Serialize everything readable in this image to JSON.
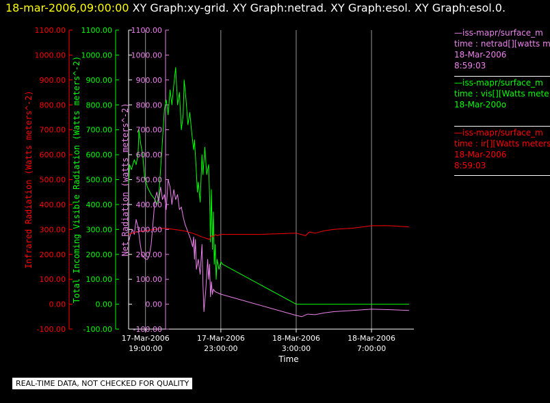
{
  "header": {
    "timestamp": "18-mar-2006,09:00:00",
    "titles": "XY Graph:xy-grid.  XY Graph:netrad.  XY Graph:esol.  XY Graph:esol.0."
  },
  "colors": {
    "ir": "#ff0000",
    "vis": "#00ff00",
    "net": "#ee82ee",
    "grid": "#ffffff",
    "timestamp": "#ffff00"
  },
  "legend": [
    {
      "source": "—iss-mapr/surface_m",
      "var": "time : netrad[][watts m",
      "date": "18-Mar-2006",
      "time": "8:59:03",
      "color": "#ee82ee"
    },
    {
      "source": "—iss-mapr/surface_m",
      "var": "time : vis[][Watts mete",
      "date": "18-Mar-200o",
      "time": "",
      "color": "#00ff00"
    },
    {
      "source": "—iss-mapr/surface_m",
      "var": "time : ir[][Watts meters",
      "date": "18-Mar-2006",
      "time": "8:59:03",
      "color": "#ff0000"
    }
  ],
  "quality_note": "REAL-TIME DATA, NOT CHECKED FOR QUALITY",
  "chart_data": {
    "type": "line",
    "xlabel": "Time",
    "x_ticks": [
      {
        "line1": "17-Mar-2006",
        "line2": "19:00:00",
        "hours": 0
      },
      {
        "line1": "17-Mar-2006",
        "line2": "23:00:00",
        "hours": 4
      },
      {
        "line1": "18-Mar-2006",
        "line2": "3:00:00",
        "hours": 8
      },
      {
        "line1": "18-Mar-2006",
        "line2": "7:00:00",
        "hours": 12
      }
    ],
    "xlim_hours": [
      -0.9,
      14.25
    ],
    "ylim": [
      -100,
      1100
    ],
    "y_ticks": [
      -100,
      0,
      100,
      200,
      300,
      400,
      500,
      600,
      700,
      800,
      900,
      1000,
      1100
    ],
    "y_tick_labels": [
      "-100.00",
      "0.00",
      "100.00",
      "200.00",
      "300.00",
      "400.00",
      "500.00",
      "600.00",
      "700.00",
      "800.00",
      "900.00",
      "1000.00",
      "1100.00"
    ],
    "axes": [
      {
        "label": "Infrared Radiation (Watts meters^-2)",
        "color": "#ff0000"
      },
      {
        "label": "Total Incoming Visible Radiation (Watts meters^-2)",
        "color": "#00ff00"
      },
      {
        "label": "Net Radiation (watts meters^-2)",
        "color": "#ee82ee"
      }
    ],
    "grid": true,
    "series": [
      {
        "key": "vis",
        "color": "#00ff00",
        "points": [
          [
            -0.9,
            480
          ],
          [
            -0.85,
            560
          ],
          [
            -0.75,
            540
          ],
          [
            -0.6,
            580
          ],
          [
            -0.5,
            560
          ],
          [
            -0.4,
            600
          ],
          [
            -0.35,
            700
          ],
          [
            -0.25,
            640
          ],
          [
            -0.15,
            600
          ],
          [
            -0.05,
            510
          ],
          [
            0.1,
            470
          ],
          [
            0.3,
            440
          ],
          [
            0.5,
            420
          ],
          [
            0.6,
            400
          ],
          [
            0.7,
            430
          ],
          [
            0.85,
            600
          ],
          [
            1.0,
            780
          ],
          [
            1.1,
            820
          ],
          [
            1.2,
            760
          ],
          [
            1.3,
            860
          ],
          [
            1.4,
            800
          ],
          [
            1.5,
            880
          ],
          [
            1.6,
            950
          ],
          [
            1.7,
            800
          ],
          [
            1.8,
            850
          ],
          [
            1.9,
            700
          ],
          [
            2.0,
            760
          ],
          [
            2.05,
            900
          ],
          [
            2.15,
            820
          ],
          [
            2.25,
            720
          ],
          [
            2.35,
            770
          ],
          [
            2.45,
            690
          ],
          [
            2.55,
            620
          ],
          [
            2.6,
            660
          ],
          [
            2.7,
            530
          ],
          [
            2.75,
            450
          ],
          [
            2.8,
            490
          ],
          [
            2.9,
            410
          ],
          [
            3.0,
            600
          ],
          [
            3.05,
            520
          ],
          [
            3.15,
            630
          ],
          [
            3.25,
            520
          ],
          [
            3.35,
            560
          ],
          [
            3.4,
            430
          ],
          [
            3.45,
            250
          ],
          [
            3.5,
            460
          ],
          [
            3.55,
            220
          ],
          [
            3.6,
            370
          ],
          [
            3.65,
            160
          ],
          [
            3.7,
            240
          ],
          [
            3.75,
            100
          ],
          [
            3.8,
            180
          ],
          [
            3.9,
            140
          ],
          [
            4.0,
            170
          ],
          [
            4.1,
            160
          ],
          [
            8.0,
            0
          ],
          [
            12.0,
            0
          ],
          [
            14.0,
            0
          ]
        ]
      },
      {
        "key": "net",
        "color": "#ee82ee",
        "points": [
          [
            -0.9,
            250
          ],
          [
            -0.8,
            280
          ],
          [
            -0.7,
            300
          ],
          [
            -0.6,
            280
          ],
          [
            -0.5,
            340
          ],
          [
            -0.4,
            310
          ],
          [
            -0.3,
            250
          ],
          [
            -0.2,
            200
          ],
          [
            -0.1,
            190
          ],
          [
            0.0,
            180
          ],
          [
            0.1,
            180
          ],
          [
            0.2,
            195
          ],
          [
            0.3,
            240
          ],
          [
            0.4,
            330
          ],
          [
            0.5,
            420
          ],
          [
            0.6,
            450
          ],
          [
            0.7,
            410
          ],
          [
            0.8,
            470
          ],
          [
            0.9,
            420
          ],
          [
            1.0,
            440
          ],
          [
            1.1,
            380
          ],
          [
            1.2,
            500
          ],
          [
            1.3,
            470
          ],
          [
            1.4,
            400
          ],
          [
            1.5,
            460
          ],
          [
            1.6,
            420
          ],
          [
            1.7,
            440
          ],
          [
            1.8,
            380
          ],
          [
            1.9,
            390
          ],
          [
            2.0,
            350
          ],
          [
            2.1,
            320
          ],
          [
            2.2,
            300
          ],
          [
            2.3,
            280
          ],
          [
            2.4,
            260
          ],
          [
            2.5,
            230
          ],
          [
            2.55,
            270
          ],
          [
            2.6,
            180
          ],
          [
            2.65,
            260
          ],
          [
            2.7,
            140
          ],
          [
            2.8,
            180
          ],
          [
            2.9,
            120
          ],
          [
            3.0,
            240
          ],
          [
            3.05,
            80
          ],
          [
            3.1,
            -30
          ],
          [
            3.2,
            60
          ],
          [
            3.3,
            180
          ],
          [
            3.35,
            100
          ],
          [
            3.4,
            160
          ],
          [
            3.45,
            30
          ],
          [
            3.5,
            90
          ],
          [
            3.55,
            40
          ],
          [
            3.6,
            60
          ],
          [
            3.7,
            50
          ],
          [
            4.0,
            40
          ],
          [
            8.0,
            -45
          ],
          [
            8.3,
            -50
          ],
          [
            8.6,
            -40
          ],
          [
            9.0,
            -42
          ],
          [
            9.5,
            -35
          ],
          [
            10.0,
            -30
          ],
          [
            11.0,
            -25
          ],
          [
            12.0,
            -20
          ],
          [
            13.0,
            -22
          ],
          [
            14.0,
            -25
          ]
        ]
      },
      {
        "key": "ir",
        "color": "#ff0000",
        "points": [
          [
            -0.9,
            280
          ],
          [
            -0.5,
            290
          ],
          [
            0.0,
            295
          ],
          [
            0.5,
            300
          ],
          [
            1.0,
            305
          ],
          [
            1.5,
            300
          ],
          [
            2.0,
            295
          ],
          [
            2.5,
            285
          ],
          [
            3.0,
            270
          ],
          [
            3.2,
            265
          ],
          [
            3.4,
            260
          ],
          [
            3.5,
            275
          ],
          [
            3.6,
            270
          ],
          [
            3.7,
            280
          ],
          [
            3.8,
            275
          ],
          [
            4.0,
            280
          ],
          [
            6.0,
            280
          ],
          [
            8.0,
            285
          ],
          [
            8.5,
            275
          ],
          [
            8.7,
            290
          ],
          [
            9.0,
            285
          ],
          [
            9.5,
            295
          ],
          [
            10.0,
            300
          ],
          [
            11.0,
            305
          ],
          [
            11.5,
            310
          ],
          [
            12.0,
            315
          ],
          [
            13.0,
            315
          ],
          [
            14.0,
            310
          ]
        ]
      }
    ]
  }
}
